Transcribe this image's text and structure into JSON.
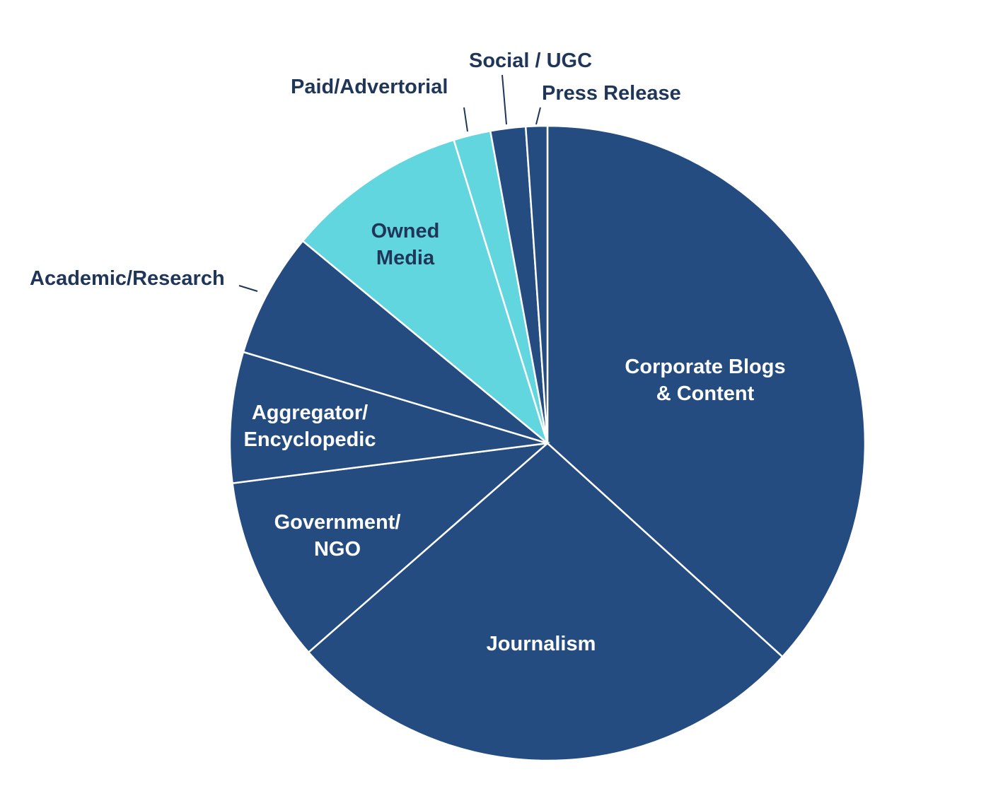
{
  "chart_data": {
    "type": "pie",
    "title": "",
    "start_angle_deg": 0,
    "direction": "clockwise",
    "slices": [
      {
        "label": "Corporate Blogs\n& Content",
        "value": 37.0,
        "color": "#244c80",
        "label_position": "inside",
        "label_color": "#ffffff"
      },
      {
        "label": "Journalism",
        "value": 27.0,
        "color": "#244c80",
        "label_position": "inside",
        "label_color": "#ffffff"
      },
      {
        "label": "Government/\nNGO",
        "value": 9.5,
        "color": "#244c80",
        "label_position": "inside",
        "label_color": "#ffffff"
      },
      {
        "label": "Aggregator/\nEncyclopedic",
        "value": 6.7,
        "color": "#244c80",
        "label_position": "inside",
        "label_color": "#ffffff"
      },
      {
        "label": "Academic/Research",
        "value": 6.4,
        "color": "#244c80",
        "label_position": "outside",
        "label_color": "#1f3659"
      },
      {
        "label": "Owned\nMedia",
        "value": 9.3,
        "color": "#62d6df",
        "label_position": "inside",
        "label_color": "#1f3659"
      },
      {
        "label": "Paid/Advertorial",
        "value": 1.9,
        "color": "#62d6df",
        "label_position": "outside",
        "label_color": "#1f3659"
      },
      {
        "label": "Social / UGC",
        "value": 1.8,
        "color": "#244c80",
        "label_position": "outside",
        "label_color": "#1f3659"
      },
      {
        "label": "Press Release",
        "value": 1.1,
        "color": "#244c80",
        "label_position": "outside",
        "label_color": "#1f3659"
      }
    ]
  }
}
